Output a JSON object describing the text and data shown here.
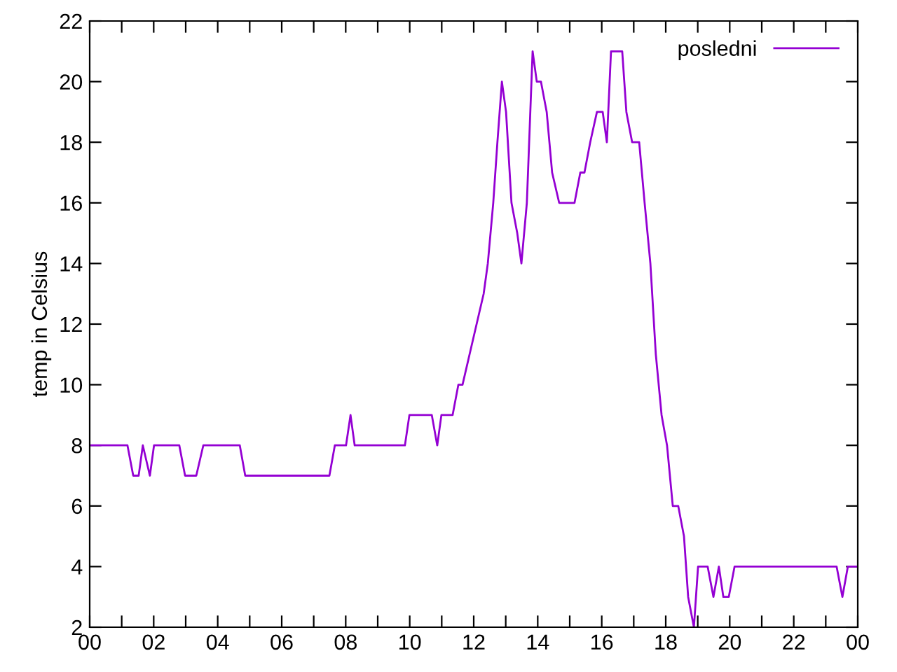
{
  "chart_data": {
    "type": "line",
    "ylabel": "temp in Celsius",
    "x": [
      0,
      1.18,
      1.36,
      1.53,
      1.66,
      1.88,
      2.01,
      2.8,
      2.98,
      3.33,
      3.55,
      4.69,
      4.86,
      7.49,
      7.66,
      8.01,
      8.15,
      8.28,
      9.85,
      9.99,
      10.69,
      10.86,
      10.99,
      11.34,
      11.52,
      11.65,
      11.87,
      12.09,
      12.31,
      12.44,
      12.61,
      12.74,
      12.88,
      13.01,
      13.18,
      13.36,
      13.49,
      13.66,
      13.84,
      13.97,
      14.1,
      14.28,
      14.45,
      14.67,
      15.15,
      15.33,
      15.46,
      15.64,
      15.85,
      16.03,
      16.16,
      16.29,
      16.64,
      16.77,
      16.95,
      17.17,
      17.34,
      17.52,
      17.69,
      17.87,
      18.04,
      18.22,
      18.39,
      18.57,
      18.7,
      18.88,
      19.01,
      19.31,
      19.49,
      19.66,
      19.8,
      19.97,
      20.15,
      23.34,
      23.52,
      23.69,
      24.0
    ],
    "series": [
      {
        "name": "posledni",
        "color": "#9400d3",
        "values": [
          8,
          8,
          7,
          7,
          8,
          7,
          8,
          8,
          7,
          7,
          8,
          8,
          7,
          7,
          8,
          8,
          9,
          8,
          8,
          9,
          9,
          8,
          9,
          9,
          10,
          10,
          11,
          12,
          13,
          14,
          16,
          18,
          20,
          19,
          16,
          15,
          14,
          16,
          21,
          20,
          20,
          19,
          17,
          16,
          16,
          17,
          17,
          18,
          19,
          19,
          18,
          21,
          21,
          19,
          18,
          18,
          16,
          14,
          11,
          9,
          8,
          6,
          6,
          5,
          3,
          2,
          4,
          4,
          3,
          4,
          3,
          3,
          4,
          4,
          3,
          4,
          4
        ]
      }
    ],
    "xlim": [
      0,
      24
    ],
    "xticks": [
      {
        "value": 0,
        "label": "00"
      },
      {
        "value": 1,
        "label": null
      },
      {
        "value": 2,
        "label": "02"
      },
      {
        "value": 3,
        "label": null
      },
      {
        "value": 4,
        "label": "04"
      },
      {
        "value": 5,
        "label": null
      },
      {
        "value": 6,
        "label": "06"
      },
      {
        "value": 7,
        "label": null
      },
      {
        "value": 8,
        "label": "08"
      },
      {
        "value": 9,
        "label": null
      },
      {
        "value": 10,
        "label": "10"
      },
      {
        "value": 11,
        "label": null
      },
      {
        "value": 12,
        "label": "12"
      },
      {
        "value": 13,
        "label": null
      },
      {
        "value": 14,
        "label": "14"
      },
      {
        "value": 15,
        "label": null
      },
      {
        "value": 16,
        "label": "16"
      },
      {
        "value": 17,
        "label": null
      },
      {
        "value": 18,
        "label": "18"
      },
      {
        "value": 19,
        "label": null
      },
      {
        "value": 20,
        "label": "20"
      },
      {
        "value": 21,
        "label": null
      },
      {
        "value": 22,
        "label": "22"
      },
      {
        "value": 23,
        "label": null
      },
      {
        "value": 24,
        "label": "00"
      }
    ],
    "ylim": [
      2,
      22
    ],
    "yticks": [
      2,
      4,
      6,
      8,
      10,
      12,
      14,
      16,
      18,
      20,
      22
    ],
    "grid": false,
    "legend": "top right",
    "marker": "none",
    "line_style": "solid"
  }
}
